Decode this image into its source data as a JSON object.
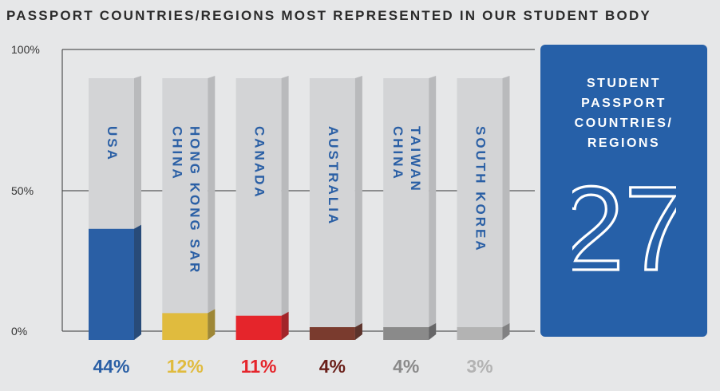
{
  "title": "PASSPORT COUNTRIES/REGIONS MOST REPRESENTED IN OUR STUDENT BODY",
  "chart_data": {
    "type": "bar",
    "categories": [
      "USA",
      "HONG KONG SAR\nCHINA",
      "CANADA",
      "AUSTRALIA",
      "TAIWAN\nCHINA",
      "SOUTH KOREA"
    ],
    "values": [
      44,
      12,
      11,
      4,
      4,
      3
    ],
    "value_labels": [
      "44%",
      "12%",
      "11%",
      "4%",
      "4%",
      "3%"
    ],
    "colors": [
      "#2a5fa5",
      "#e0bb3e",
      "#e5252b",
      "#7a3b2e",
      "#8a8a8a",
      "#b3b3b3"
    ],
    "label_colors": [
      "#2a5fa5",
      "#e0bb3e",
      "#e5252b",
      "#6a1f19",
      "#8a8a8a",
      "#b3b3b3"
    ],
    "yticks": [
      "100%",
      "50%",
      "0%"
    ],
    "ylim": [
      0,
      100
    ],
    "grid": true
  },
  "stat": {
    "label": "STUDENT\nPASSPORT\nCOUNTRIES/\nREGIONS",
    "value": "27"
  }
}
